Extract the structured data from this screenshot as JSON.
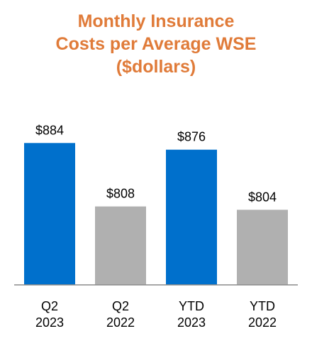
{
  "chart_data": {
    "type": "bar",
    "title_lines": [
      "Monthly Insurance",
      "Costs per Average WSE",
      "($dollars)"
    ],
    "categories": [
      [
        "Q2",
        "2023"
      ],
      [
        "Q2",
        "2022"
      ],
      [
        "YTD",
        "2023"
      ],
      [
        "YTD",
        "2022"
      ]
    ],
    "values": [
      884,
      808,
      876,
      804
    ],
    "data_labels": [
      "$884",
      "$808",
      "$876",
      "$804"
    ],
    "bar_colors": [
      "#0070CC",
      "#B0B0B0",
      "#0070CC",
      "#B0B0B0"
    ],
    "title_color": "#E07B39",
    "axis_color": "#8A8A8A",
    "xlabel": "",
    "ylabel": "",
    "ylim": [
      0,
      1000
    ],
    "grid": false,
    "legend": "none"
  }
}
